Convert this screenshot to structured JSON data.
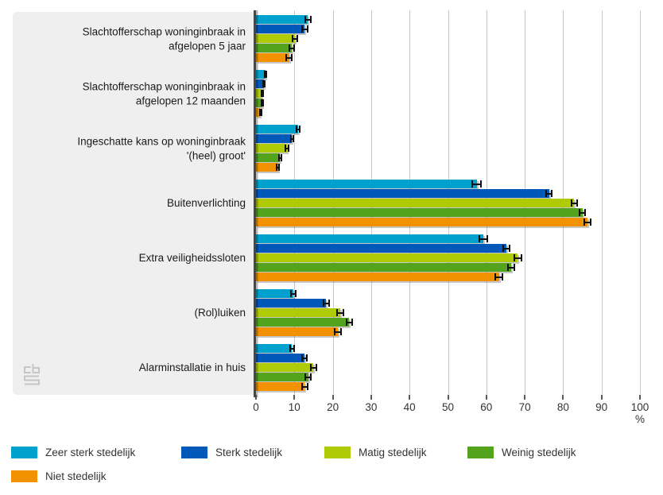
{
  "chart_data": {
    "type": "bar",
    "orientation": "horizontal",
    "title": "",
    "xlabel": "%",
    "xlim": [
      0,
      100
    ],
    "ticks": [
      0,
      10,
      20,
      30,
      40,
      50,
      60,
      70,
      80,
      90,
      100
    ],
    "grid": true,
    "error_bars": true,
    "legend_position": "bottom",
    "categories": [
      "Slachtofferschap woninginbraak in afgelopen 5 jaar",
      "Slachtofferschap woninginbraak in afgelopen 12 maanden",
      "Ingeschatte kans op woninginbraak '(heel) groot'",
      "Buitenverlichting",
      "Extra veiligheidssloten",
      "(Rol)luiken",
      "Alarminstallatie in huis"
    ],
    "series": [
      {
        "name": "Zeer sterk stedelijk",
        "color": "#00a1cd",
        "values": [
          13.5,
          2.4,
          11.0,
          57.5,
          59.2,
          9.8,
          9.4
        ],
        "ci": [
          0.9,
          0.4,
          0.7,
          1.3,
          1.2,
          0.8,
          0.7
        ]
      },
      {
        "name": "Sterk stedelijk",
        "color": "#0058b8",
        "values": [
          12.7,
          2.0,
          9.4,
          76.3,
          65.2,
          18.3,
          12.6
        ],
        "ci": [
          0.9,
          0.35,
          0.6,
          1.0,
          1.1,
          0.9,
          0.8
        ]
      },
      {
        "name": "Matig stedelijk",
        "color": "#afcb05",
        "values": [
          10.2,
          1.5,
          8.0,
          82.9,
          68.2,
          21.9,
          15.0
        ],
        "ci": [
          0.8,
          0.3,
          0.6,
          0.9,
          1.1,
          1.0,
          0.9
        ]
      },
      {
        "name": "Weinig stedelijk",
        "color": "#53a31d",
        "values": [
          9.3,
          1.6,
          6.3,
          85.0,
          66.4,
          24.3,
          13.6
        ],
        "ci": [
          0.8,
          0.3,
          0.5,
          0.9,
          1.0,
          1.0,
          0.9
        ]
      },
      {
        "name": "Niet stedelijk",
        "color": "#f39200",
        "values": [
          8.6,
          1.1,
          5.7,
          86.3,
          63.3,
          21.3,
          12.7
        ],
        "ci": [
          0.9,
          0.3,
          0.5,
          1.0,
          1.1,
          1.0,
          0.9
        ]
      }
    ]
  },
  "colors": {
    "panel_bg": "#efefef",
    "gridline": "#c9c9c9",
    "axis_line": "#474747",
    "error_bar": "#111111",
    "logo": "#c6c6c6"
  },
  "icons": {
    "watermark": "cbs-logo"
  }
}
